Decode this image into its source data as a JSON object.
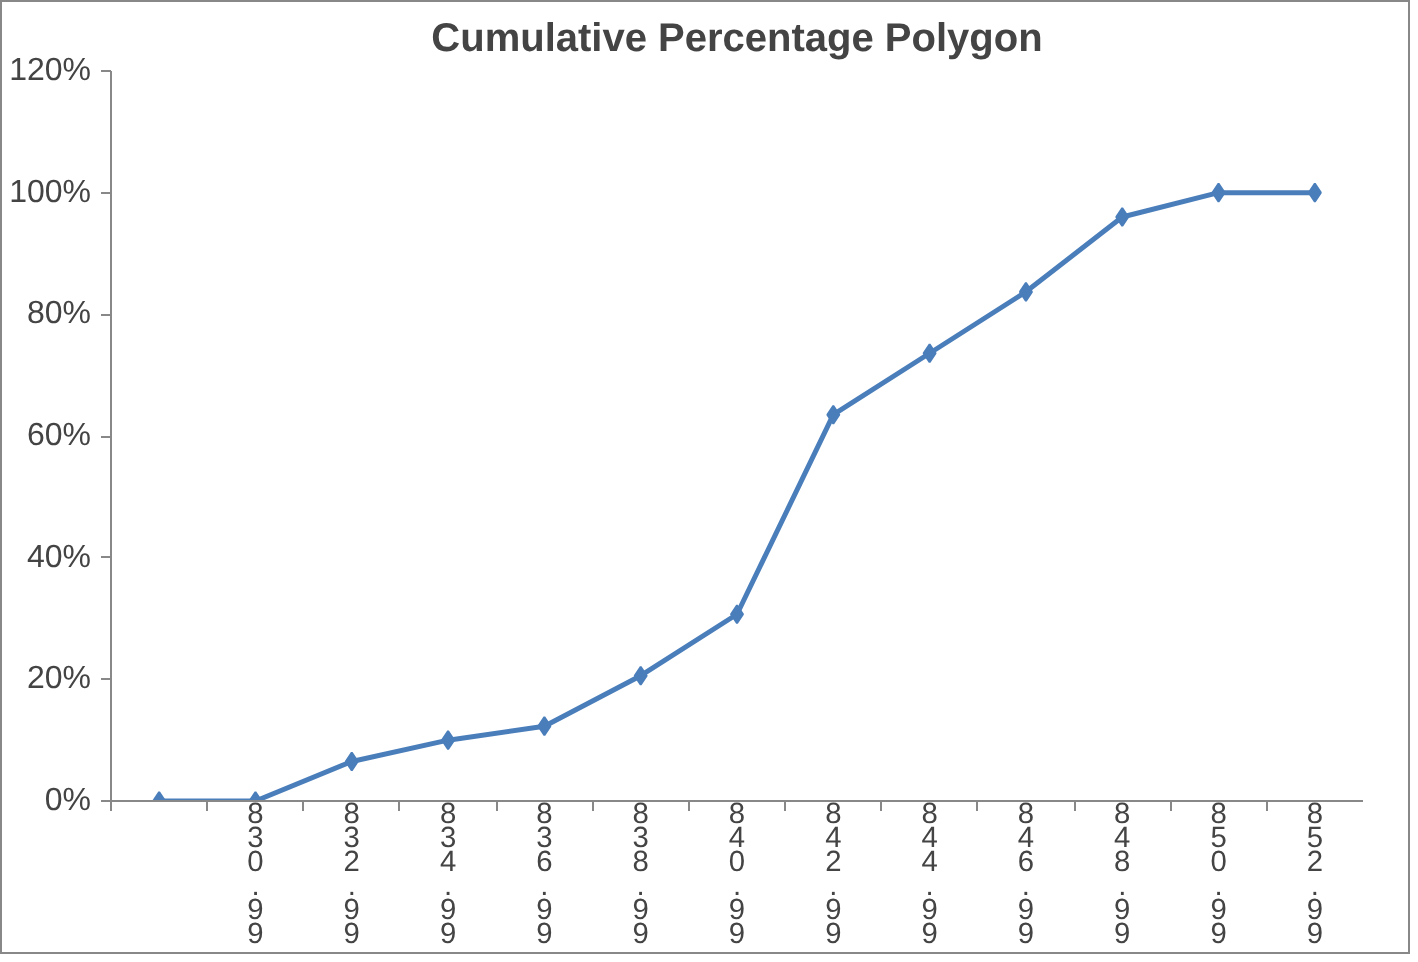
{
  "chart_data": {
    "type": "line",
    "title": "Cumulative Percentage Polygon",
    "categories": [
      null,
      "830.99",
      "832.99",
      "834.99",
      "836.99",
      "838.99",
      "840.99",
      "842.99",
      "844.99",
      "846.99",
      "848.99",
      "850.99",
      "852.99"
    ],
    "series": [
      {
        "color": "#4a7ebb",
        "values": [
          0,
          0,
          6.5,
          10,
          12.3,
          20.6,
          30.7,
          63.5,
          73.6,
          83.7,
          96,
          100,
          100
        ]
      }
    ],
    "ylim": [
      0,
      120
    ],
    "yticks": [
      {
        "value": 0,
        "label": "0%"
      },
      {
        "value": 20,
        "label": "20%"
      },
      {
        "value": 40,
        "label": "40%"
      },
      {
        "value": 60,
        "label": "60%"
      },
      {
        "value": 80,
        "label": "80%"
      },
      {
        "value": 100,
        "label": "100%"
      },
      {
        "value": 120,
        "label": "120%"
      }
    ],
    "marker": "diamond",
    "grid": false
  }
}
